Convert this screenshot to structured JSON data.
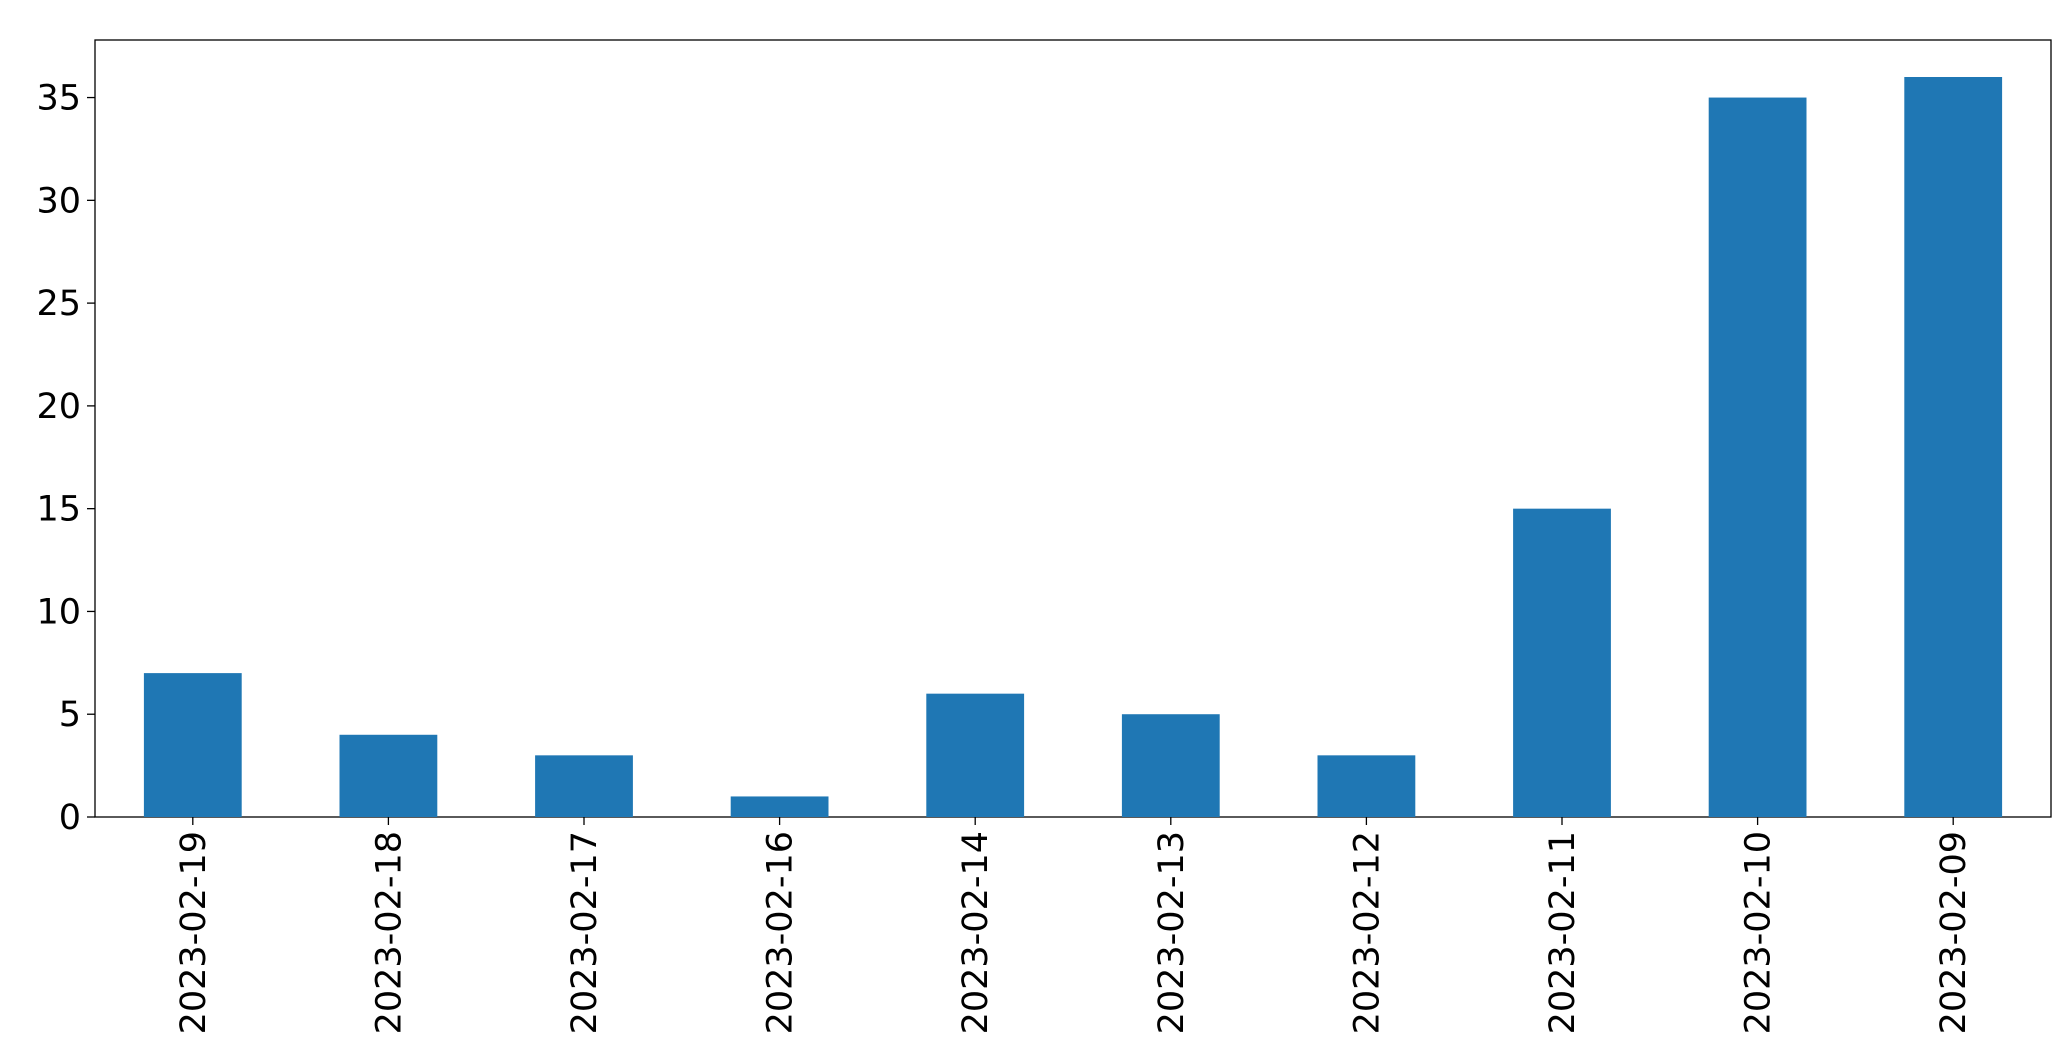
{
  "chart_data": {
    "type": "bar",
    "categories": [
      "2023-02-19",
      "2023-02-18",
      "2023-02-17",
      "2023-02-16",
      "2023-02-14",
      "2023-02-13",
      "2023-02-12",
      "2023-02-11",
      "2023-02-10",
      "2023-02-09"
    ],
    "values": [
      7,
      4,
      3,
      1,
      6,
      5,
      3,
      15,
      35,
      36
    ],
    "color": "#1f77b4",
    "ylim": [
      0,
      37.8
    ],
    "yticks": [
      0,
      5,
      10,
      15,
      20,
      25,
      30,
      35
    ],
    "grid": false
  }
}
